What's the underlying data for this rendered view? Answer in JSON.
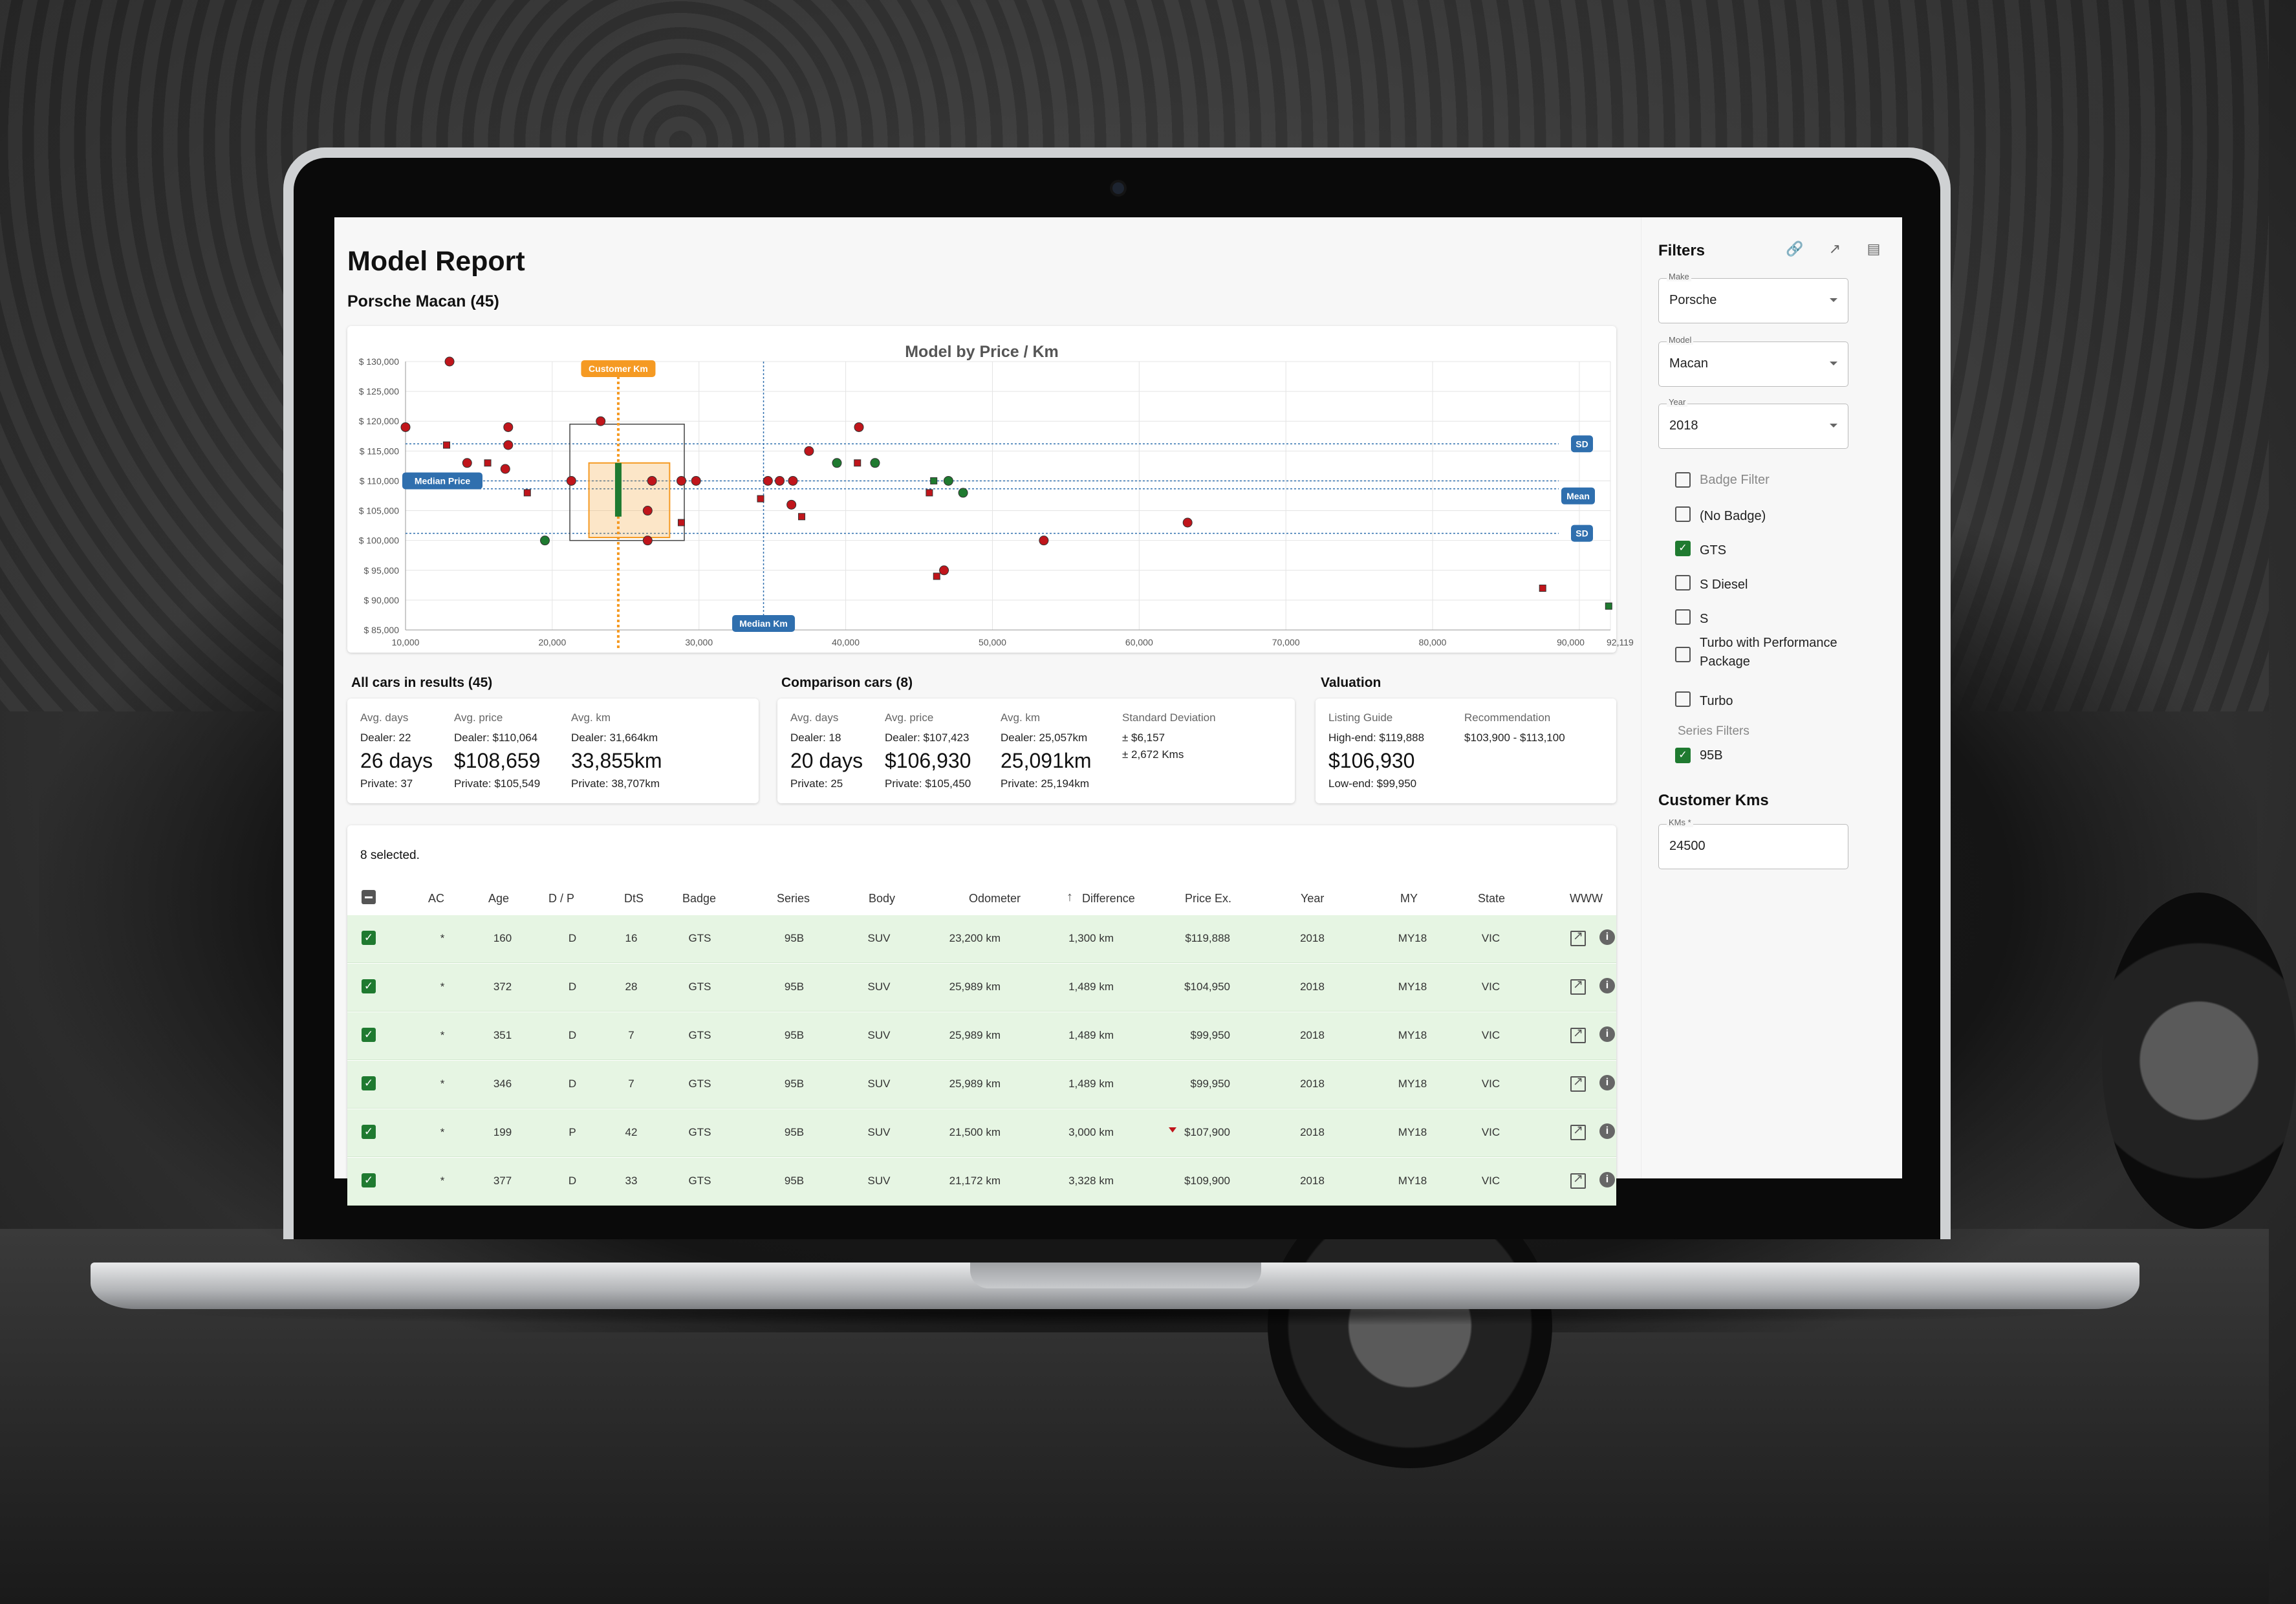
{
  "app": {
    "title": "Model Report",
    "subtitle": "Porsche Macan (45)"
  },
  "chart_data": {
    "type": "scatter",
    "title": "Model by Price / Km",
    "xlabel": "",
    "ylabel": "",
    "xlim": [
      10000,
      92119
    ],
    "ylim": [
      85000,
      130000
    ],
    "x_ticks": [
      "10,000",
      "20,000",
      "30,000",
      "40,000",
      "50,000",
      "60,000",
      "70,000",
      "80,000",
      "90,000",
      "92,119"
    ],
    "y_ticks": [
      "$ 85,000",
      "$ 90,000",
      "$ 95,000",
      "$ 100,000",
      "$ 105,000",
      "$ 110,000",
      "$ 115,000",
      "$ 120,000",
      "$ 125,000",
      "$ 130,000"
    ],
    "annotations": {
      "customer_km_label": "Customer Km",
      "customer_km": 24500,
      "median_km_label": "Median Km",
      "median_km": 34400,
      "median_price_label": "Median Price",
      "median_price": 110000,
      "mean_label": "Mean",
      "mean_price": 108659,
      "sd_label": "SD",
      "sd_upper": 116200,
      "sd_lower": 101200
    },
    "colors": {
      "red": "#c0151b",
      "green": "#1f7a30",
      "orange": "#f59a23",
      "blue": "#2f6fae"
    },
    "series": [
      {
        "marker": "circle",
        "color": "red",
        "points": [
          [
            13000,
            130000
          ],
          [
            10000,
            119000
          ],
          [
            17000,
            119000
          ],
          [
            23300,
            120000
          ],
          [
            40900,
            119000
          ],
          [
            17000,
            116000
          ],
          [
            14200,
            113000
          ],
          [
            16800,
            112000
          ],
          [
            21300,
            110000
          ],
          [
            26800,
            110000
          ],
          [
            28800,
            110000
          ],
          [
            29800,
            110000
          ],
          [
            34700,
            110000
          ],
          [
            35500,
            110000
          ],
          [
            36400,
            110000
          ],
          [
            26500,
            105000
          ],
          [
            36300,
            106000
          ],
          [
            26500,
            100000
          ],
          [
            37500,
            115000
          ],
          [
            53500,
            100000
          ],
          [
            63300,
            103000
          ],
          [
            46700,
            95000
          ]
        ]
      },
      {
        "marker": "square",
        "color": "red",
        "points": [
          [
            12800,
            116000
          ],
          [
            15600,
            113000
          ],
          [
            18300,
            108000
          ],
          [
            28800,
            103000
          ],
          [
            34200,
            107000
          ],
          [
            37000,
            104000
          ],
          [
            40800,
            113000
          ],
          [
            42000,
            113000
          ],
          [
            45700,
            108000
          ],
          [
            46200,
            94000
          ],
          [
            87500,
            92000
          ]
        ]
      },
      {
        "marker": "circle",
        "color": "green",
        "points": [
          [
            19500,
            100000
          ],
          [
            39400,
            113000
          ],
          [
            42000,
            113000
          ],
          [
            47000,
            110000
          ],
          [
            48000,
            108000
          ]
        ]
      },
      {
        "marker": "square",
        "color": "green",
        "points": [
          [
            46000,
            110000
          ],
          [
            92000,
            89000
          ]
        ]
      }
    ]
  },
  "summary": {
    "all_cars": {
      "title": "All cars in results (45)",
      "avg_days_label": "Avg. days",
      "avg_days_dealer": "Dealer: 22",
      "avg_days": "26 days",
      "avg_days_private": "Private: 37",
      "avg_price_label": "Avg. price",
      "avg_price_dealer": "Dealer: $110,064",
      "avg_price": "$108,659",
      "avg_price_private": "Private: $105,549",
      "avg_km_label": "Avg. km",
      "avg_km_dealer": "Dealer: 31,664km",
      "avg_km": "33,855km",
      "avg_km_private": "Private: 38,707km"
    },
    "comparison": {
      "title": "Comparison cars (8)",
      "avg_days_label": "Avg. days",
      "avg_days_dealer": "Dealer: 18",
      "avg_days": "20 days",
      "avg_days_private": "Private: 25",
      "avg_price_label": "Avg. price",
      "avg_price_dealer": "Dealer: $107,423",
      "avg_price": "$106,930",
      "avg_price_private": "Private: $105,450",
      "avg_km_label": "Avg. km",
      "avg_km_dealer": "Dealer: 25,057km",
      "avg_km": "25,091km",
      "avg_km_private": "Private: 25,194km",
      "sd_label": "Standard Deviation",
      "sd_price": "± $6,157",
      "sd_km": "± 2,672 Kms"
    },
    "valuation": {
      "title": "Valuation",
      "listing_label": "Listing Guide",
      "high_end": "High-end: $119,888",
      "value": "$106,930",
      "low_end": "Low-end: $99,950",
      "rec_label": "Recommendation",
      "rec_value": "$103,900 - $113,100"
    }
  },
  "table": {
    "selected_text": "8 selected.",
    "headers": [
      "AC",
      "Age",
      "D / P",
      "DtS",
      "Badge",
      "Series",
      "Body",
      "Odometer",
      "Difference",
      "Price Ex.",
      "Year",
      "MY",
      "State",
      "WWW"
    ],
    "rows": [
      [
        "*",
        "160",
        "D",
        "16",
        "GTS",
        "95B",
        "SUV",
        "23,200 km",
        "1,300 km",
        "$119,888",
        "2018",
        "MY18",
        "VIC"
      ],
      [
        "*",
        "372",
        "D",
        "28",
        "GTS",
        "95B",
        "SUV",
        "25,989 km",
        "1,489 km",
        "$104,950",
        "2018",
        "MY18",
        "VIC"
      ],
      [
        "*",
        "351",
        "D",
        "7",
        "GTS",
        "95B",
        "SUV",
        "25,989 km",
        "1,489 km",
        "$99,950",
        "2018",
        "MY18",
        "VIC"
      ],
      [
        "*",
        "346",
        "D",
        "7",
        "GTS",
        "95B",
        "SUV",
        "25,989 km",
        "1,489 km",
        "$99,950",
        "2018",
        "MY18",
        "VIC"
      ],
      [
        "*",
        "199",
        "P",
        "42",
        "GTS",
        "95B",
        "SUV",
        "21,500 km",
        "3,000 km",
        "$107,900",
        "2018",
        "MY18",
        "VIC"
      ],
      [
        "*",
        "377",
        "D",
        "33",
        "GTS",
        "95B",
        "SUV",
        "21,172 km",
        "3,328 km",
        "$109,900",
        "2018",
        "MY18",
        "VIC"
      ]
    ]
  },
  "sidebar": {
    "title": "Filters",
    "icons": [
      "link-icon",
      "open-external-icon",
      "pdf-icon"
    ],
    "make_label": "Make",
    "make_value": "Porsche",
    "model_label": "Model",
    "model_value": "Macan",
    "year_label": "Year",
    "year_value": "2018",
    "badge_filter_label": "Badge Filter",
    "badges": [
      {
        "label": "(No Badge)",
        "checked": false
      },
      {
        "label": "GTS",
        "checked": true
      },
      {
        "label": "S Diesel",
        "checked": false
      },
      {
        "label": "S",
        "checked": false
      },
      {
        "label": "Turbo with Performance Package",
        "checked": false
      },
      {
        "label": "Turbo",
        "checked": false
      }
    ],
    "series_filters_label": "Series Filters",
    "series": [
      {
        "label": "95B",
        "checked": true
      }
    ],
    "customer_kms_title": "Customer Kms",
    "kms_label": "KMs *",
    "kms_value": "24500"
  }
}
